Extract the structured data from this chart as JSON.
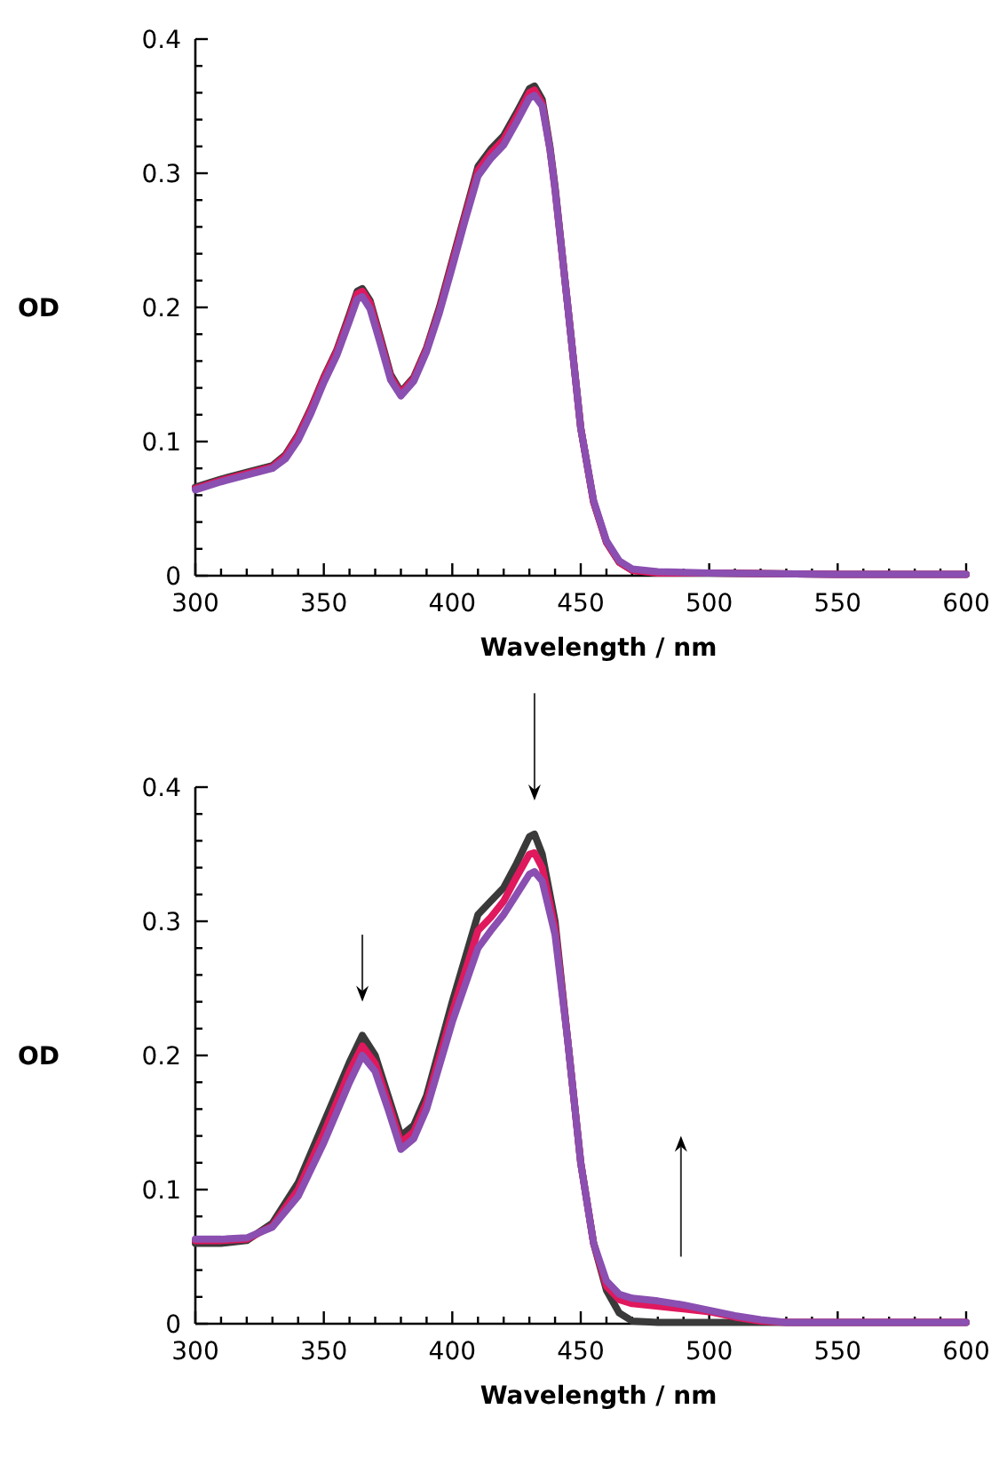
{
  "chart_data": [
    {
      "type": "line",
      "xlabel": "Wavelength / nm",
      "ylabel": "OD",
      "xlim": [
        300,
        600
      ],
      "ylim": [
        0,
        0.4
      ],
      "xticks": [
        300,
        {
          "value": 310,
          "label": null
        },
        {
          "value": 320,
          "label": null
        },
        {
          "value": 330,
          "label": null
        },
        {
          "value": 340,
          "label": null
        },
        350,
        {
          "value": 360,
          "label": null
        },
        {
          "value": 370,
          "label": null
        },
        {
          "value": 380,
          "label": null
        },
        {
          "value": 390,
          "label": null
        },
        400,
        {
          "value": 410,
          "label": null
        },
        {
          "value": 420,
          "label": null
        },
        {
          "value": 430,
          "label": null
        },
        {
          "value": 440,
          "label": null
        },
        450,
        {
          "value": 460,
          "label": null
        },
        {
          "value": 470,
          "label": null
        },
        {
          "value": 480,
          "label": null
        },
        {
          "value": 490,
          "label": null
        },
        500,
        {
          "value": 510,
          "label": null
        },
        {
          "value": 520,
          "label": null
        },
        {
          "value": 530,
          "label": null
        },
        {
          "value": 540,
          "label": null
        },
        550,
        {
          "value": 560,
          "label": null
        },
        {
          "value": 570,
          "label": null
        },
        {
          "value": 580,
          "label": null
        },
        {
          "value": 590,
          "label": null
        },
        600
      ],
      "yticks": [
        0,
        {
          "value": 0.02,
          "label": null
        },
        {
          "value": 0.04,
          "label": null
        },
        {
          "value": 0.06,
          "label": null
        },
        {
          "value": 0.08,
          "label": null
        },
        0.1,
        {
          "value": 0.12,
          "label": null
        },
        {
          "value": 0.14,
          "label": null
        },
        {
          "value": 0.16,
          "label": null
        },
        {
          "value": 0.18,
          "label": null
        },
        0.2,
        {
          "value": 0.22,
          "label": null
        },
        {
          "value": 0.24,
          "label": null
        },
        {
          "value": 0.26,
          "label": null
        },
        {
          "value": 0.28,
          "label": null
        },
        0.3,
        {
          "value": 0.32,
          "label": null
        },
        {
          "value": 0.34,
          "label": null
        },
        {
          "value": 0.36,
          "label": null
        },
        {
          "value": 0.38,
          "label": null
        },
        0.4
      ],
      "x": [
        300,
        310,
        320,
        330,
        335,
        340,
        345,
        350,
        355,
        360,
        363,
        365,
        368,
        372,
        376,
        380,
        385,
        390,
        395,
        400,
        405,
        410,
        415,
        420,
        425,
        430,
        432,
        435,
        438,
        440,
        445,
        450,
        455,
        460,
        465,
        470,
        480,
        500,
        550,
        600
      ],
      "series": [
        {
          "color": "#3a3a3a",
          "values": [
            0.066,
            0.072,
            0.077,
            0.082,
            0.09,
            0.105,
            0.125,
            0.148,
            0.168,
            0.195,
            0.212,
            0.214,
            0.205,
            0.178,
            0.15,
            0.137,
            0.148,
            0.17,
            0.2,
            0.235,
            0.27,
            0.305,
            0.318,
            0.328,
            0.345,
            0.363,
            0.365,
            0.355,
            0.32,
            0.29,
            0.2,
            0.11,
            0.055,
            0.025,
            0.01,
            0.004,
            0.002,
            0.002,
            0.001,
            0.001
          ]
        },
        {
          "color": "#e0185e",
          "values": [
            0.065,
            0.071,
            0.076,
            0.081,
            0.089,
            0.104,
            0.124,
            0.147,
            0.167,
            0.193,
            0.21,
            0.212,
            0.203,
            0.176,
            0.148,
            0.136,
            0.147,
            0.169,
            0.198,
            0.233,
            0.268,
            0.302,
            0.315,
            0.325,
            0.342,
            0.36,
            0.362,
            0.352,
            0.318,
            0.288,
            0.2,
            0.11,
            0.055,
            0.025,
            0.01,
            0.004,
            0.002,
            0.002,
            0.001,
            0.001
          ]
        },
        {
          "color": "#8a4fb0",
          "values": [
            0.064,
            0.07,
            0.075,
            0.08,
            0.087,
            0.101,
            0.121,
            0.144,
            0.164,
            0.19,
            0.206,
            0.208,
            0.199,
            0.173,
            0.146,
            0.134,
            0.145,
            0.167,
            0.196,
            0.23,
            0.265,
            0.298,
            0.311,
            0.321,
            0.338,
            0.356,
            0.358,
            0.35,
            0.318,
            0.288,
            0.2,
            0.11,
            0.056,
            0.026,
            0.011,
            0.005,
            0.003,
            0.002,
            0.001,
            0.001
          ]
        }
      ]
    },
    {
      "type": "line",
      "xlabel": "Wavelength / nm",
      "ylabel": "OD",
      "xlim": [
        300,
        600
      ],
      "ylim": [
        0,
        0.4
      ],
      "xticks": [
        300,
        {
          "value": 310,
          "label": null
        },
        {
          "value": 320,
          "label": null
        },
        {
          "value": 330,
          "label": null
        },
        {
          "value": 340,
          "label": null
        },
        350,
        {
          "value": 360,
          "label": null
        },
        {
          "value": 370,
          "label": null
        },
        {
          "value": 380,
          "label": null
        },
        {
          "value": 390,
          "label": null
        },
        400,
        {
          "value": 410,
          "label": null
        },
        {
          "value": 420,
          "label": null
        },
        {
          "value": 430,
          "label": null
        },
        {
          "value": 440,
          "label": null
        },
        450,
        {
          "value": 460,
          "label": null
        },
        {
          "value": 470,
          "label": null
        },
        {
          "value": 480,
          "label": null
        },
        {
          "value": 490,
          "label": null
        },
        500,
        {
          "value": 510,
          "label": null
        },
        {
          "value": 520,
          "label": null
        },
        {
          "value": 530,
          "label": null
        },
        {
          "value": 540,
          "label": null
        },
        550,
        {
          "value": 560,
          "label": null
        },
        {
          "value": 570,
          "label": null
        },
        {
          "value": 580,
          "label": null
        },
        {
          "value": 590,
          "label": null
        },
        600
      ],
      "yticks": [
        0,
        {
          "value": 0.02,
          "label": null
        },
        {
          "value": 0.04,
          "label": null
        },
        {
          "value": 0.06,
          "label": null
        },
        {
          "value": 0.08,
          "label": null
        },
        0.1,
        {
          "value": 0.12,
          "label": null
        },
        {
          "value": 0.14,
          "label": null
        },
        {
          "value": 0.16,
          "label": null
        },
        {
          "value": 0.18,
          "label": null
        },
        0.2,
        {
          "value": 0.22,
          "label": null
        },
        {
          "value": 0.24,
          "label": null
        },
        {
          "value": 0.26,
          "label": null
        },
        {
          "value": 0.28,
          "label": null
        },
        0.3,
        {
          "value": 0.32,
          "label": null
        },
        {
          "value": 0.34,
          "label": null
        },
        {
          "value": 0.36,
          "label": null
        },
        {
          "value": 0.38,
          "label": null
        },
        0.4
      ],
      "x": [
        300,
        310,
        320,
        330,
        340,
        350,
        360,
        365,
        370,
        375,
        380,
        385,
        390,
        400,
        410,
        415,
        420,
        425,
        430,
        432,
        435,
        440,
        445,
        450,
        455,
        460,
        465,
        470,
        480,
        490,
        500,
        510,
        520,
        530,
        600
      ],
      "series": [
        {
          "color": "#3a3a3a",
          "values": [
            0.06,
            0.06,
            0.062,
            0.075,
            0.105,
            0.15,
            0.195,
            0.215,
            0.2,
            0.17,
            0.14,
            0.148,
            0.17,
            0.24,
            0.305,
            0.315,
            0.325,
            0.343,
            0.363,
            0.365,
            0.35,
            0.3,
            0.21,
            0.12,
            0.06,
            0.025,
            0.008,
            0.002,
            0.001,
            0.001,
            0.001,
            0.001,
            0.001,
            0.001,
            0.001
          ]
        },
        {
          "color": "#e0185e",
          "values": [
            0.062,
            0.062,
            0.063,
            0.073,
            0.1,
            0.142,
            0.188,
            0.207,
            0.194,
            0.165,
            0.135,
            0.143,
            0.165,
            0.232,
            0.293,
            0.303,
            0.315,
            0.333,
            0.35,
            0.351,
            0.34,
            0.295,
            0.21,
            0.12,
            0.06,
            0.028,
            0.018,
            0.015,
            0.013,
            0.011,
            0.009,
            0.005,
            0.002,
            0.001,
            0.001
          ]
        },
        {
          "color": "#8a4fb0",
          "values": [
            0.063,
            0.063,
            0.064,
            0.072,
            0.095,
            0.135,
            0.18,
            0.2,
            0.188,
            0.16,
            0.13,
            0.138,
            0.16,
            0.225,
            0.28,
            0.293,
            0.305,
            0.32,
            0.335,
            0.337,
            0.33,
            0.29,
            0.21,
            0.12,
            0.06,
            0.032,
            0.022,
            0.019,
            0.017,
            0.014,
            0.01,
            0.006,
            0.003,
            0.001,
            0.001
          ]
        }
      ]
    }
  ]
}
